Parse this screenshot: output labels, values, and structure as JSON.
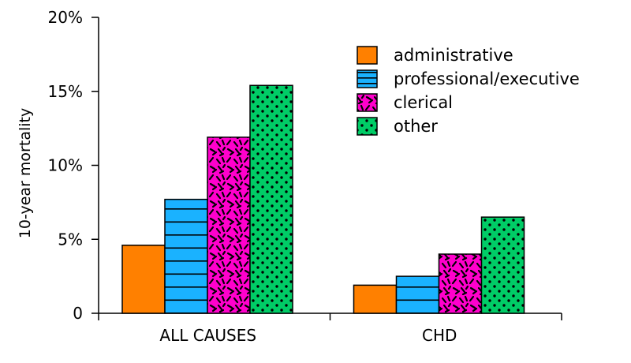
{
  "chart_data": {
    "type": "bar",
    "categories": [
      "ALL CAUSES",
      "CHD"
    ],
    "series": [
      {
        "name": "administrative",
        "values": [
          4.6,
          1.9
        ],
        "color": "#ff8000",
        "pattern": "solid"
      },
      {
        "name": "professional/executive",
        "values": [
          7.7,
          2.5
        ],
        "color": "#1ab2ff",
        "pattern": "horizontal-lines"
      },
      {
        "name": "clerical",
        "values": [
          11.9,
          4.0
        ],
        "color": "#ff00cc",
        "pattern": "dashes"
      },
      {
        "name": "other",
        "values": [
          15.4,
          6.5
        ],
        "color": "#00cc66",
        "pattern": "dots"
      }
    ],
    "ylabel": "10-year mortality",
    "xlabel": "",
    "ylim": [
      0,
      20
    ],
    "yticks": [
      0,
      5,
      10,
      15,
      20
    ],
    "ytick_labels": [
      "0",
      "5%",
      "10%",
      "15%",
      "20%"
    ],
    "legend_position": "top-right",
    "grid": false
  }
}
